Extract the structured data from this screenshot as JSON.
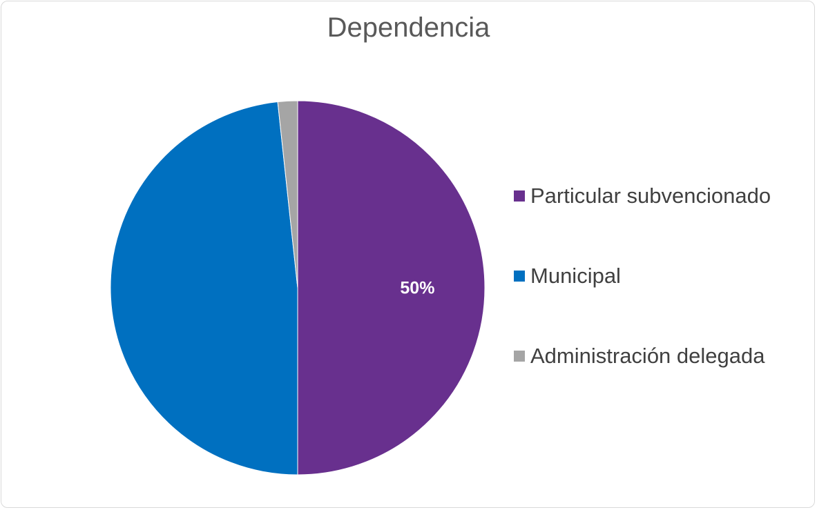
{
  "chart_data": {
    "type": "pie",
    "title": "Dependencia",
    "slices": [
      {
        "name": "Particular subvencionado",
        "value": 50,
        "label": "50%",
        "color": "#68308e"
      },
      {
        "name": "Municipal",
        "value": 48.3,
        "label": "",
        "color": "#0070c0"
      },
      {
        "name": "Administración delegada",
        "value": 1.7,
        "label": "",
        "color": "#a5a5a5"
      }
    ],
    "start_angle_deg": 0,
    "direction": "clockwise",
    "legend_position": "right"
  }
}
